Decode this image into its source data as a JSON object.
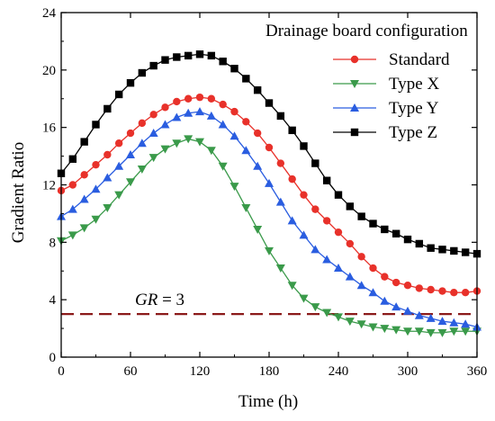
{
  "chart_data": {
    "type": "line",
    "xlabel": "Time (h)",
    "ylabel": "Gradient Ratio",
    "xlim": [
      0,
      360
    ],
    "ylim": [
      0,
      24
    ],
    "xticks": [
      0,
      60,
      120,
      180,
      240,
      300,
      360
    ],
    "yticks": [
      0,
      4,
      8,
      12,
      16,
      20,
      24
    ],
    "grid": false,
    "legend": {
      "title": "Drainage board configuration",
      "placement": "top-right"
    },
    "colors": {
      "Standard": "#e8312a",
      "Type X": "#3a9a4a",
      "Type Y": "#2a5de0",
      "Type Z": "#000000",
      "threshold": "#8b1a1a"
    },
    "series": [
      {
        "name": "Standard",
        "marker": "circle",
        "x": [
          0,
          10,
          20,
          30,
          40,
          50,
          60,
          70,
          80,
          90,
          100,
          110,
          120,
          130,
          140,
          150,
          160,
          170,
          180,
          190,
          200,
          210,
          220,
          230,
          240,
          250,
          260,
          270,
          280,
          290,
          300,
          310,
          320,
          330,
          340,
          350,
          360
        ],
        "y": [
          11.6,
          12.0,
          12.7,
          13.4,
          14.1,
          14.9,
          15.6,
          16.3,
          16.9,
          17.4,
          17.8,
          18.0,
          18.1,
          18.0,
          17.6,
          17.1,
          16.4,
          15.6,
          14.6,
          13.5,
          12.4,
          11.3,
          10.3,
          9.5,
          8.7,
          7.9,
          7.0,
          6.2,
          5.6,
          5.2,
          5.0,
          4.8,
          4.7,
          4.6,
          4.5,
          4.5,
          4.6
        ]
      },
      {
        "name": "Type X",
        "marker": "triangle-down",
        "x": [
          0,
          10,
          20,
          30,
          40,
          50,
          60,
          70,
          80,
          90,
          100,
          110,
          120,
          130,
          140,
          150,
          160,
          170,
          180,
          190,
          200,
          210,
          220,
          230,
          240,
          250,
          260,
          270,
          280,
          290,
          300,
          310,
          320,
          330,
          340,
          350,
          360
        ],
        "y": [
          8.1,
          8.5,
          9.0,
          9.6,
          10.4,
          11.3,
          12.2,
          13.1,
          13.9,
          14.5,
          14.9,
          15.2,
          15.0,
          14.4,
          13.3,
          11.9,
          10.4,
          8.9,
          7.4,
          6.2,
          5.0,
          4.1,
          3.5,
          3.1,
          2.8,
          2.5,
          2.3,
          2.1,
          2.0,
          1.9,
          1.8,
          1.8,
          1.7,
          1.7,
          1.8,
          1.8,
          1.8
        ]
      },
      {
        "name": "Type Y",
        "marker": "triangle-up",
        "x": [
          0,
          10,
          20,
          30,
          40,
          50,
          60,
          70,
          80,
          90,
          100,
          110,
          120,
          130,
          140,
          150,
          160,
          170,
          180,
          190,
          200,
          210,
          220,
          230,
          240,
          250,
          260,
          270,
          280,
          290,
          300,
          310,
          320,
          330,
          340,
          350,
          360
        ],
        "y": [
          9.8,
          10.3,
          11.0,
          11.7,
          12.5,
          13.3,
          14.1,
          14.9,
          15.6,
          16.2,
          16.7,
          17.0,
          17.1,
          16.8,
          16.2,
          15.4,
          14.4,
          13.3,
          12.1,
          10.8,
          9.5,
          8.5,
          7.5,
          6.8,
          6.2,
          5.6,
          5.0,
          4.5,
          3.9,
          3.5,
          3.2,
          2.9,
          2.7,
          2.5,
          2.4,
          2.3,
          2.1
        ]
      },
      {
        "name": "Type Z",
        "marker": "square",
        "x": [
          0,
          10,
          20,
          30,
          40,
          50,
          60,
          70,
          80,
          90,
          100,
          110,
          120,
          130,
          140,
          150,
          160,
          170,
          180,
          190,
          200,
          210,
          220,
          230,
          240,
          250,
          260,
          270,
          280,
          290,
          300,
          310,
          320,
          330,
          340,
          350,
          360
        ],
        "y": [
          12.8,
          13.8,
          15.0,
          16.2,
          17.3,
          18.3,
          19.1,
          19.8,
          20.3,
          20.7,
          20.9,
          21.0,
          21.1,
          21.0,
          20.6,
          20.1,
          19.4,
          18.6,
          17.7,
          16.8,
          15.8,
          14.7,
          13.5,
          12.3,
          11.3,
          10.5,
          9.8,
          9.3,
          8.9,
          8.6,
          8.2,
          7.9,
          7.6,
          7.5,
          7.4,
          7.3,
          7.2
        ]
      }
    ],
    "reference_line": {
      "y": 3,
      "style": "dashed",
      "label_var": "GR",
      "label_rest": " = 3"
    }
  }
}
